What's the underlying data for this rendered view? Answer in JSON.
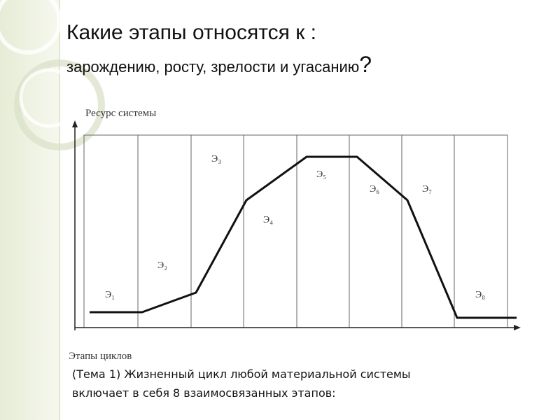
{
  "title": {
    "line1": "Какие этапы относятся к :",
    "line2": "зарождению,  росту, зрелости и угасанию",
    "mark": "?"
  },
  "diagram": {
    "y_axis_label": "Ресурс системы",
    "x_axis_label": "Этапы циклов",
    "stages": [
      "Э₁",
      "Э₂",
      "Э₃",
      "Э₄",
      "Э₅",
      "Э₆",
      "Э₇",
      "Э₈"
    ]
  },
  "caption": {
    "line1": "(Тема 1) Жизненный цикл любой материальной системы",
    "line2": "включает в себя 8 взаимосвязанных этапов:"
  }
}
